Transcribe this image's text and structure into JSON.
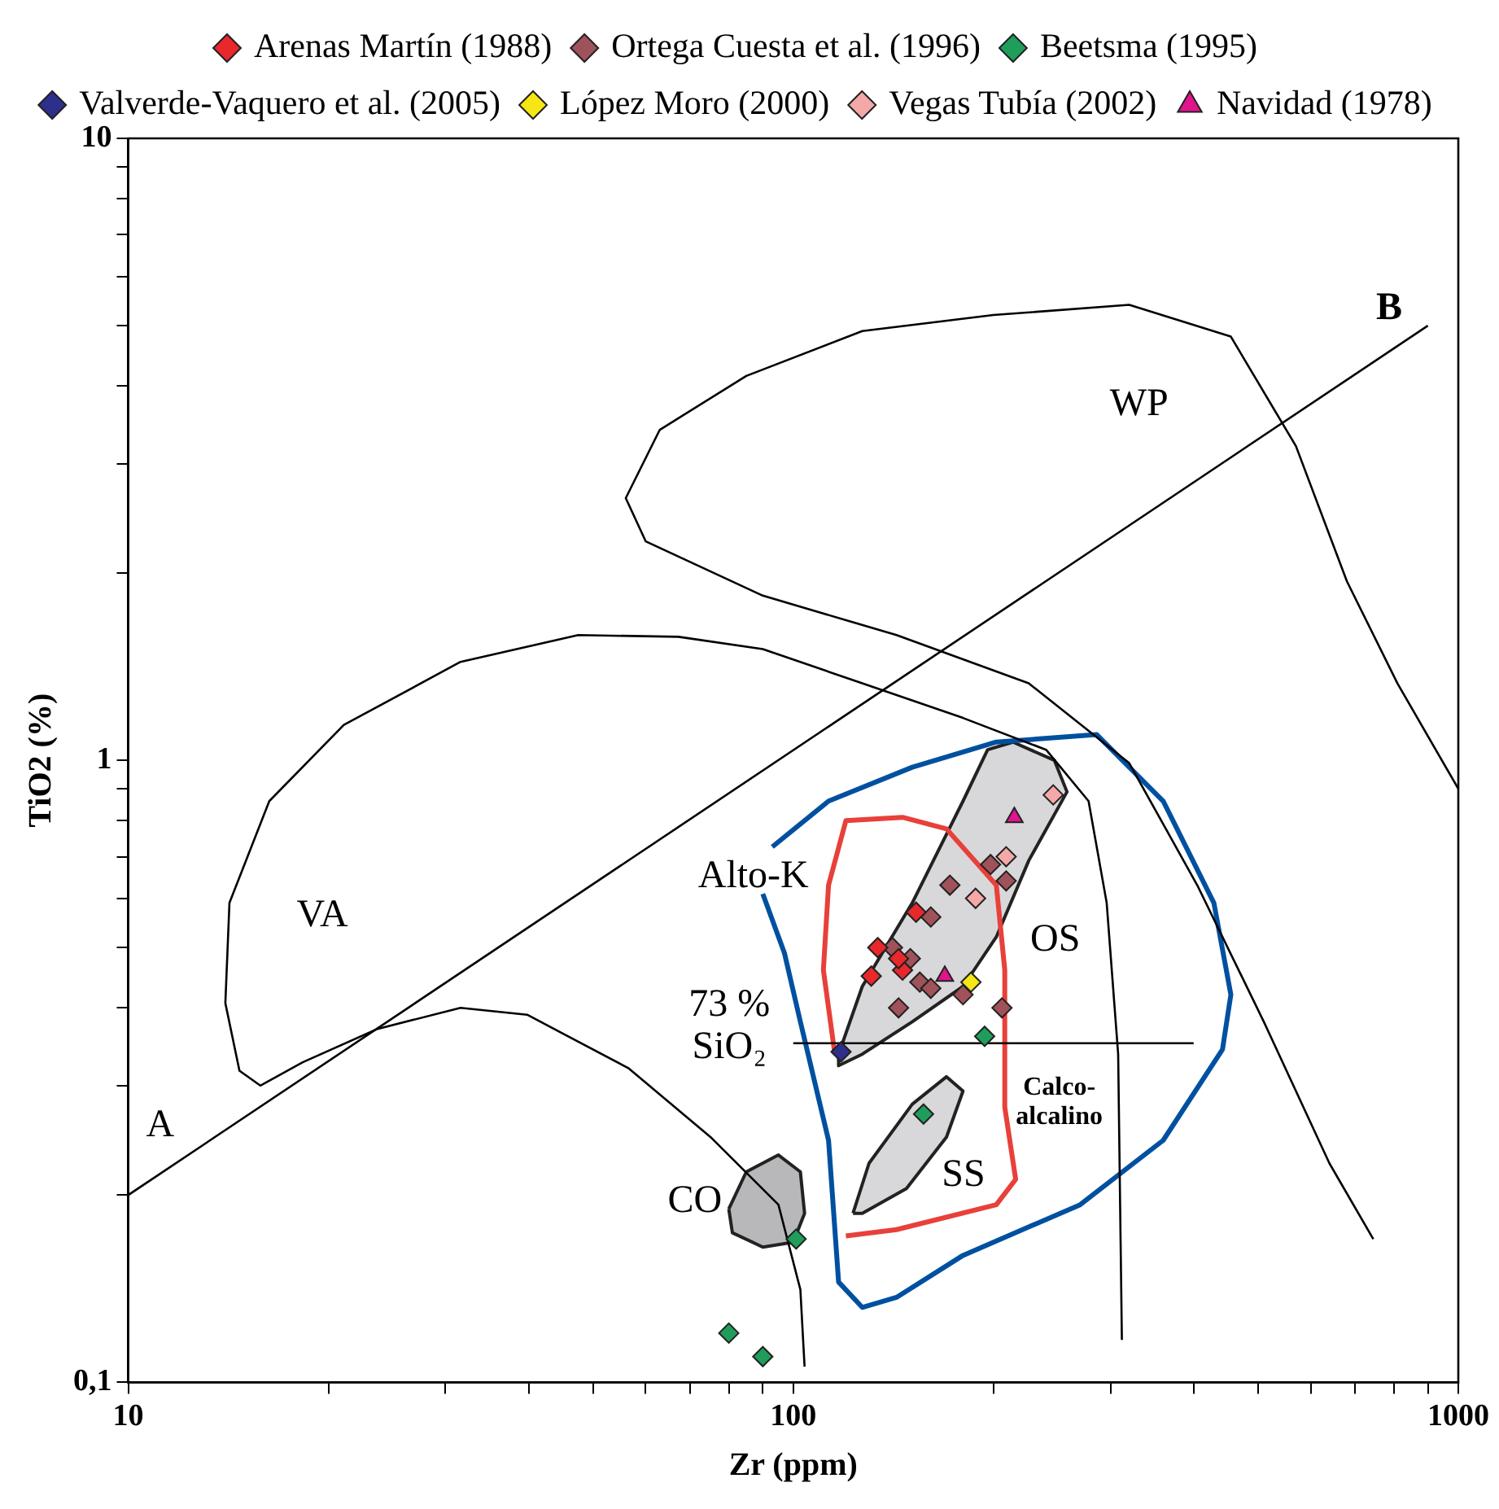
{
  "chart_data": {
    "type": "scatter",
    "xlabel": "Zr (ppm)",
    "ylabel": "TiO2 (%)",
    "log": "xy",
    "xlim": [
      10,
      1000
    ],
    "ylim": [
      0.1,
      10
    ],
    "xticks": [
      10,
      {
        "value": 20,
        "label": null
      },
      {
        "value": 30,
        "label": null
      },
      {
        "value": 40,
        "label": null
      },
      {
        "value": 50,
        "label": null
      },
      {
        "value": 60,
        "label": null
      },
      {
        "value": 70,
        "label": null
      },
      {
        "value": 80,
        "label": null
      },
      {
        "value": 90,
        "label": null
      },
      100,
      {
        "value": 200,
        "label": null
      },
      {
        "value": 300,
        "label": null
      },
      {
        "value": 400,
        "label": null
      },
      {
        "value": 500,
        "label": null
      },
      {
        "value": 600,
        "label": null
      },
      {
        "value": 700,
        "label": null
      },
      {
        "value": 800,
        "label": null
      },
      {
        "value": 900,
        "label": null
      },
      1000
    ],
    "yticks": [
      {
        "value": 0.1,
        "label": "0,1"
      },
      {
        "value": 0.2,
        "label": null
      },
      {
        "value": 0.3,
        "label": null
      },
      {
        "value": 0.4,
        "label": null
      },
      {
        "value": 0.5,
        "label": null
      },
      {
        "value": 0.6,
        "label": null
      },
      {
        "value": 0.7,
        "label": null
      },
      {
        "value": 0.8,
        "label": null
      },
      {
        "value": 0.9,
        "label": null
      },
      1,
      {
        "value": 2,
        "label": null
      },
      {
        "value": 3,
        "label": null
      },
      {
        "value": 4,
        "label": null
      },
      {
        "value": 5,
        "label": null
      },
      {
        "value": 6,
        "label": null
      },
      {
        "value": 7,
        "label": null
      },
      {
        "value": 8,
        "label": null
      },
      {
        "value": 9,
        "label": null
      },
      10
    ],
    "grid": false,
    "legend": "top",
    "marker": "diamond",
    "line_style": "solid",
    "series": [
      {
        "name": "Arenas Martín (1988)",
        "color": "#e8282a",
        "x": [
          153,
          134,
          131,
          146,
          144
        ],
        "values": [
          0.57,
          0.5,
          0.45,
          0.46,
          0.48
        ]
      },
      {
        "name": "Ortega Cuesta et al. (1996)",
        "color": "#a0525a",
        "x": [
          198,
          209,
          172,
          161,
          141,
          150,
          155,
          161,
          144,
          180,
          206
        ],
        "values": [
          0.68,
          0.64,
          0.63,
          0.56,
          0.5,
          0.48,
          0.44,
          0.43,
          0.4,
          0.42,
          0.4
        ]
      },
      {
        "name": "Beetsma (1995)",
        "color": "#1e9e5a",
        "x": [
          194,
          157,
          101,
          80,
          90
        ],
        "values": [
          0.36,
          0.27,
          0.17,
          0.12,
          0.11
        ]
      },
      {
        "name": "Valverde-Vaquero et al. (2005)",
        "color": "#2e2e8c",
        "x": [
          118
        ],
        "values": [
          0.34
        ]
      },
      {
        "name": "López Moro (2000)",
        "color": "#f5e614",
        "x": [
          185
        ],
        "values": [
          0.44
        ]
      },
      {
        "name": "Vegas Tubía (2002)",
        "color": "#f4a8a8",
        "x": [
          246,
          209,
          188
        ],
        "values": [
          0.88,
          0.7,
          0.6
        ]
      },
      {
        "name": "Navidad (1978)",
        "color": "#e0148c",
        "marker": "triangle",
        "x": [
          215,
          169
        ],
        "values": [
          0.81,
          0.45
        ]
      },
      {
        "type": "area",
        "marker": "none",
        "color": "#d8d8da",
        "x": [
          117,
          127,
          151,
          180,
          196,
          214,
          247,
          258,
          226,
          202,
          180,
          151,
          127,
          117,
          117
        ],
        "values": [
          0.337,
          0.433,
          0.59,
          0.86,
          1.04,
          1.07,
          1.0,
          0.89,
          0.69,
          0.52,
          0.433,
          0.38,
          0.337,
          0.323,
          0.337
        ]
      },
      {
        "type": "area",
        "marker": "none",
        "color": "#d8d8da",
        "x": [
          123,
          130,
          151,
          170,
          180,
          170,
          148,
          127,
          123
        ],
        "values": [
          0.187,
          0.225,
          0.28,
          0.31,
          0.294,
          0.248,
          0.205,
          0.187,
          0.187
        ]
      },
      {
        "type": "area",
        "marker": "none",
        "color": "#b8b8ba",
        "x": [
          80,
          85,
          95,
          102.5,
          104,
          100,
          90,
          81,
          80
        ],
        "values": [
          0.19,
          0.218,
          0.232,
          0.218,
          0.187,
          0.168,
          0.165,
          0.174,
          0.19
        ]
      },
      {
        "type": "line",
        "marker": "none",
        "color": "#000000",
        "x": [
          1000,
          810,
          680,
          570,
          455,
          320,
          200,
          127,
          85,
          63,
          56,
          60,
          90,
          143,
          226,
          320,
          405,
          510,
          640,
          745
        ],
        "values": [
          0.9,
          1.33,
          1.94,
          3.2,
          4.8,
          5.4,
          5.2,
          4.9,
          4.15,
          3.4,
          2.64,
          2.25,
          1.84,
          1.59,
          1.33,
          0.99,
          0.63,
          0.38,
          0.225,
          0.17
        ]
      },
      {
        "type": "line",
        "marker": "none",
        "color": "#000000",
        "x": [
          312,
          308,
          296,
          278,
          240,
          180,
          127,
          90,
          67.2,
          47.5,
          31.6,
          21.1,
          16.3,
          14.2,
          14,
          14.7,
          15.8,
          18.3,
          23.7,
          31.6,
          39.8,
          56.5,
          75.4,
          95,
          102.5,
          104
        ],
        "values": [
          0.117,
          0.337,
          0.59,
          0.86,
          1.04,
          1.17,
          1.33,
          1.51,
          1.58,
          1.59,
          1.44,
          1.14,
          0.86,
          0.59,
          0.407,
          0.317,
          0.3,
          0.327,
          0.37,
          0.4,
          0.39,
          0.32,
          0.247,
          0.193,
          0.141,
          0.106
        ]
      },
      {
        "type": "line",
        "marker": "none",
        "color": "#000000",
        "x": [
          10,
          900
        ],
        "values": [
          0.2,
          5
        ]
      },
      {
        "type": "line",
        "marker": "none",
        "color": "#000000",
        "x": [
          100,
          400
        ],
        "values": [
          0.351,
          0.351
        ]
      },
      {
        "type": "line",
        "marker": "none",
        "color": "#e8403a",
        "x": [
          120,
          143,
          202,
          216,
          208,
          208,
          202,
          170,
          146,
          120,
          113,
          111,
          115.5
        ],
        "values": [
          0.172,
          0.176,
          0.193,
          0.212,
          0.277,
          0.46,
          0.63,
          0.776,
          0.81,
          0.8,
          0.63,
          0.46,
          0.337
        ]
      },
      {
        "type": "line",
        "marker": "none",
        "color": "#0050a0",
        "x": [
          93,
          113,
          151,
          202,
          286,
          360,
          429,
          455,
          442,
          360,
          270,
          180,
          143,
          127,
          117,
          113,
          102.5,
          97,
          90
        ],
        "values": [
          0.726,
          0.86,
          0.975,
          1.07,
          1.1,
          0.86,
          0.59,
          0.42,
          0.343,
          0.245,
          0.193,
          0.16,
          0.137,
          0.132,
          0.145,
          0.245,
          0.38,
          0.49,
          0.61
        ]
      }
    ],
    "annotations": [
      "A",
      "B",
      "WP",
      "VA",
      "CO",
      "OS",
      "SS",
      "Alto-K",
      "73 %\nSiO₂",
      "Calco-\nalcalino"
    ]
  }
}
